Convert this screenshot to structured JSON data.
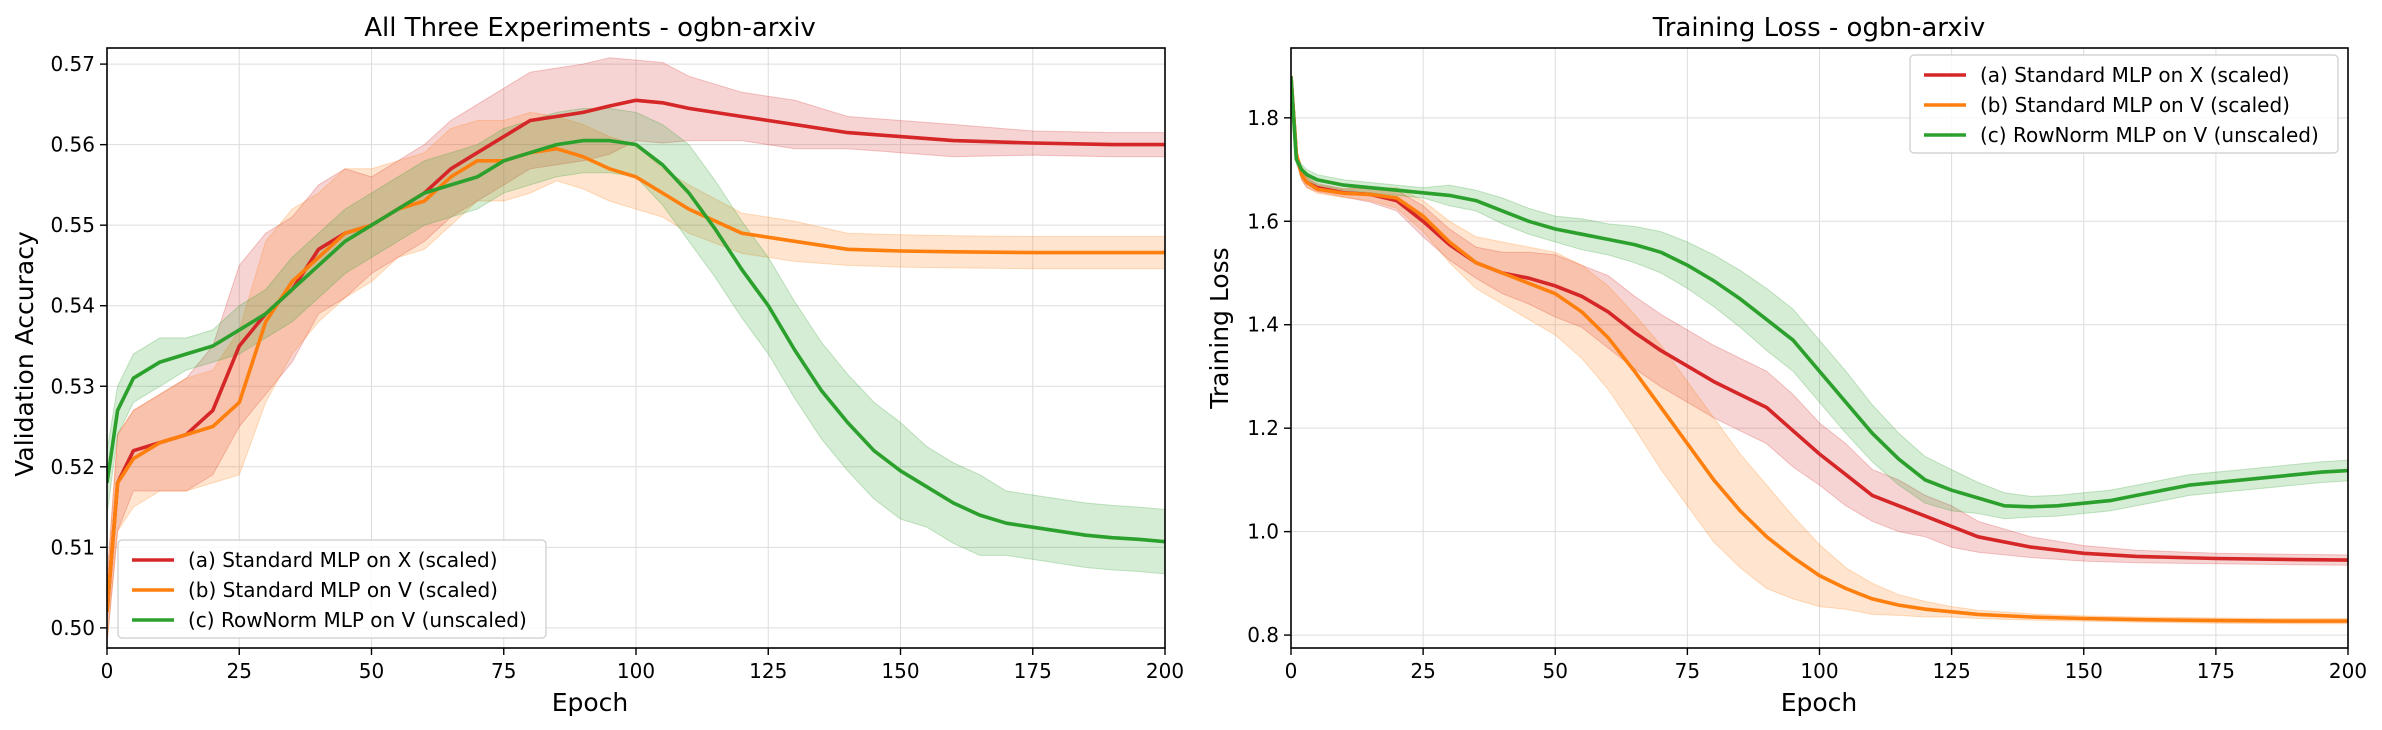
{
  "colors": {
    "a": "#d62728",
    "b": "#ff7f0e",
    "c": "#2ca02c"
  },
  "chart_data": [
    {
      "type": "line",
      "title": "All Three Experiments - ogbn-arxiv",
      "xlabel": "Epoch",
      "ylabel": "Validation Accuracy",
      "xlim": [
        0,
        200
      ],
      "ylim": [
        0.4975,
        0.572
      ],
      "xticks": [
        0,
        25,
        50,
        75,
        100,
        125,
        150,
        175,
        200
      ],
      "yticks": [
        0.5,
        0.51,
        0.52,
        0.53,
        0.54,
        0.55,
        0.56,
        0.57
      ],
      "ytick_decimals": 2,
      "grid": true,
      "legend_position": "lower-left",
      "series": [
        {
          "name": "(a) Standard MLP on X (scaled)",
          "color_key": "a",
          "x": [
            0,
            2,
            5,
            10,
            15,
            20,
            25,
            30,
            35,
            40,
            45,
            50,
            55,
            60,
            65,
            70,
            75,
            80,
            85,
            90,
            95,
            100,
            105,
            110,
            120,
            130,
            140,
            150,
            160,
            175,
            190,
            200
          ],
          "y": [
            0.502,
            0.518,
            0.522,
            0.523,
            0.524,
            0.527,
            0.535,
            0.539,
            0.542,
            0.547,
            0.549,
            0.55,
            0.552,
            0.554,
            0.557,
            0.559,
            0.561,
            0.563,
            0.5635,
            0.564,
            0.5648,
            0.5655,
            0.5652,
            0.5645,
            0.5635,
            0.5625,
            0.5615,
            0.561,
            0.5605,
            0.5602,
            0.56,
            0.56
          ],
          "band": [
            0.004,
            0.006,
            0.005,
            0.006,
            0.007,
            0.008,
            0.01,
            0.01,
            0.009,
            0.008,
            0.008,
            0.006,
            0.006,
            0.006,
            0.006,
            0.006,
            0.006,
            0.006,
            0.006,
            0.006,
            0.006,
            0.005,
            0.005,
            0.004,
            0.003,
            0.003,
            0.002,
            0.002,
            0.002,
            0.0015,
            0.0015,
            0.0015
          ]
        },
        {
          "name": "(b) Standard MLP on V (scaled)",
          "color_key": "b",
          "x": [
            0,
            2,
            5,
            10,
            15,
            20,
            25,
            30,
            35,
            40,
            45,
            50,
            55,
            60,
            65,
            70,
            75,
            80,
            85,
            90,
            95,
            100,
            105,
            110,
            120,
            130,
            140,
            150,
            160,
            175,
            190,
            200
          ],
          "y": [
            0.502,
            0.518,
            0.521,
            0.523,
            0.524,
            0.525,
            0.528,
            0.538,
            0.543,
            0.546,
            0.549,
            0.55,
            0.552,
            0.553,
            0.556,
            0.558,
            0.558,
            0.559,
            0.5595,
            0.5585,
            0.557,
            0.556,
            0.554,
            0.552,
            0.549,
            0.548,
            0.547,
            0.5468,
            0.5467,
            0.5466,
            0.5466,
            0.5466
          ],
          "band": [
            0.004,
            0.006,
            0.006,
            0.006,
            0.007,
            0.007,
            0.009,
            0.01,
            0.009,
            0.008,
            0.008,
            0.007,
            0.006,
            0.006,
            0.006,
            0.005,
            0.005,
            0.005,
            0.004,
            0.004,
            0.004,
            0.004,
            0.003,
            0.003,
            0.0025,
            0.0025,
            0.002,
            0.002,
            0.002,
            0.002,
            0.002,
            0.002
          ]
        },
        {
          "name": "(c) RowNorm MLP on V (unscaled)",
          "color_key": "c",
          "x": [
            0,
            2,
            5,
            10,
            15,
            20,
            25,
            30,
            35,
            40,
            45,
            50,
            55,
            60,
            65,
            70,
            75,
            80,
            85,
            90,
            95,
            100,
            105,
            110,
            115,
            120,
            125,
            130,
            135,
            140,
            145,
            150,
            155,
            160,
            165,
            170,
            175,
            180,
            185,
            190,
            195,
            200
          ],
          "y": [
            0.518,
            0.527,
            0.531,
            0.533,
            0.534,
            0.535,
            0.537,
            0.539,
            0.542,
            0.545,
            0.548,
            0.55,
            0.552,
            0.554,
            0.555,
            0.556,
            0.558,
            0.559,
            0.56,
            0.5605,
            0.5605,
            0.56,
            0.5575,
            0.554,
            0.5495,
            0.5445,
            0.54,
            0.5345,
            0.5295,
            0.5255,
            0.522,
            0.5195,
            0.5175,
            0.5155,
            0.514,
            0.513,
            0.5125,
            0.512,
            0.5115,
            0.5112,
            0.511,
            0.5107
          ],
          "band": [
            0.004,
            0.003,
            0.003,
            0.003,
            0.002,
            0.002,
            0.003,
            0.003,
            0.004,
            0.004,
            0.004,
            0.004,
            0.004,
            0.004,
            0.004,
            0.004,
            0.004,
            0.004,
            0.004,
            0.004,
            0.004,
            0.004,
            0.005,
            0.006,
            0.006,
            0.006,
            0.006,
            0.006,
            0.006,
            0.006,
            0.006,
            0.006,
            0.005,
            0.005,
            0.005,
            0.004,
            0.004,
            0.004,
            0.004,
            0.004,
            0.004,
            0.004
          ]
        }
      ]
    },
    {
      "type": "line",
      "title": "Training Loss - ogbn-arxiv",
      "xlabel": "Epoch",
      "ylabel": "Training Loss",
      "xlim": [
        0,
        200
      ],
      "ylim": [
        0.775,
        1.935
      ],
      "xticks": [
        0,
        25,
        50,
        75,
        100,
        125,
        150,
        175,
        200
      ],
      "yticks": [
        0.8,
        1.0,
        1.2,
        1.4,
        1.6,
        1.8
      ],
      "ytick_decimals": 1,
      "grid": true,
      "legend_position": "top-right",
      "series": [
        {
          "name": "(a) Standard MLP on X (scaled)",
          "color_key": "a",
          "x": [
            0,
            1,
            2,
            3,
            5,
            10,
            15,
            20,
            25,
            30,
            35,
            40,
            45,
            50,
            55,
            60,
            65,
            70,
            75,
            80,
            85,
            90,
            95,
            100,
            105,
            110,
            115,
            120,
            125,
            130,
            140,
            150,
            160,
            175,
            190,
            200
          ],
          "y": [
            1.88,
            1.73,
            1.69,
            1.675,
            1.665,
            1.655,
            1.652,
            1.64,
            1.6,
            1.555,
            1.52,
            1.5,
            1.49,
            1.475,
            1.455,
            1.425,
            1.385,
            1.35,
            1.32,
            1.29,
            1.265,
            1.24,
            1.195,
            1.15,
            1.11,
            1.07,
            1.05,
            1.03,
            1.01,
            0.99,
            0.97,
            0.958,
            0.952,
            0.948,
            0.946,
            0.945
          ],
          "band": [
            0.005,
            0.01,
            0.01,
            0.01,
            0.008,
            0.008,
            0.015,
            0.02,
            0.03,
            0.03,
            0.03,
            0.04,
            0.05,
            0.06,
            0.06,
            0.07,
            0.07,
            0.07,
            0.07,
            0.07,
            0.07,
            0.07,
            0.07,
            0.06,
            0.06,
            0.05,
            0.05,
            0.04,
            0.04,
            0.03,
            0.02,
            0.015,
            0.012,
            0.01,
            0.01,
            0.01
          ]
        },
        {
          "name": "(b) Standard MLP on V (scaled)",
          "color_key": "b",
          "x": [
            0,
            1,
            2,
            3,
            5,
            10,
            15,
            20,
            25,
            30,
            35,
            40,
            45,
            50,
            55,
            60,
            65,
            70,
            75,
            80,
            85,
            90,
            95,
            100,
            105,
            110,
            115,
            120,
            125,
            130,
            140,
            150,
            160,
            175,
            190,
            200
          ],
          "y": [
            1.88,
            1.73,
            1.69,
            1.675,
            1.662,
            1.654,
            1.652,
            1.645,
            1.61,
            1.56,
            1.52,
            1.5,
            1.48,
            1.46,
            1.425,
            1.375,
            1.31,
            1.24,
            1.17,
            1.1,
            1.04,
            0.99,
            0.95,
            0.915,
            0.89,
            0.87,
            0.858,
            0.85,
            0.845,
            0.84,
            0.835,
            0.832,
            0.83,
            0.828,
            0.827,
            0.827
          ],
          "band": [
            0.005,
            0.01,
            0.01,
            0.01,
            0.008,
            0.008,
            0.012,
            0.02,
            0.03,
            0.04,
            0.05,
            0.06,
            0.07,
            0.08,
            0.09,
            0.1,
            0.11,
            0.12,
            0.12,
            0.12,
            0.11,
            0.1,
            0.08,
            0.06,
            0.04,
            0.03,
            0.02,
            0.015,
            0.01,
            0.008,
            0.006,
            0.005,
            0.005,
            0.005,
            0.005,
            0.005
          ]
        },
        {
          "name": "(c) RowNorm MLP on V (unscaled)",
          "color_key": "c",
          "x": [
            0,
            1,
            2,
            3,
            5,
            10,
            15,
            20,
            25,
            30,
            35,
            40,
            45,
            50,
            55,
            60,
            65,
            70,
            75,
            80,
            85,
            90,
            95,
            100,
            105,
            110,
            115,
            120,
            125,
            130,
            135,
            140,
            145,
            150,
            155,
            160,
            165,
            170,
            175,
            180,
            185,
            190,
            195,
            200
          ],
          "y": [
            1.88,
            1.72,
            1.7,
            1.69,
            1.68,
            1.67,
            1.665,
            1.66,
            1.655,
            1.65,
            1.64,
            1.62,
            1.6,
            1.585,
            1.575,
            1.565,
            1.555,
            1.54,
            1.515,
            1.485,
            1.45,
            1.41,
            1.37,
            1.31,
            1.25,
            1.19,
            1.14,
            1.1,
            1.08,
            1.065,
            1.05,
            1.048,
            1.05,
            1.055,
            1.06,
            1.07,
            1.08,
            1.09,
            1.095,
            1.1,
            1.105,
            1.11,
            1.115,
            1.118
          ],
          "band": [
            0.005,
            0.01,
            0.01,
            0.01,
            0.01,
            0.01,
            0.01,
            0.01,
            0.01,
            0.02,
            0.02,
            0.025,
            0.025,
            0.025,
            0.03,
            0.03,
            0.035,
            0.04,
            0.045,
            0.05,
            0.055,
            0.06,
            0.06,
            0.06,
            0.06,
            0.055,
            0.05,
            0.045,
            0.04,
            0.03,
            0.025,
            0.02,
            0.02,
            0.02,
            0.02,
            0.02,
            0.02,
            0.02,
            0.02,
            0.02,
            0.02,
            0.02,
            0.02,
            0.02
          ]
        }
      ]
    }
  ]
}
